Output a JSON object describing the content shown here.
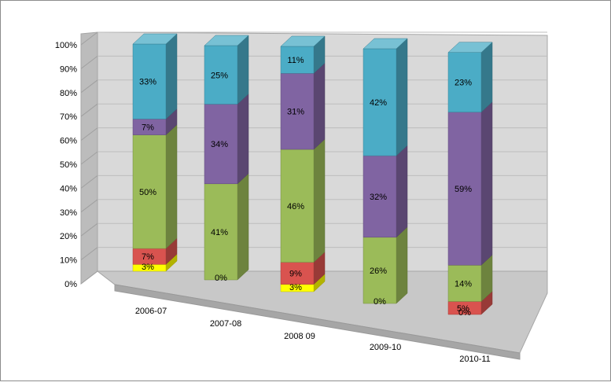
{
  "chart_data": {
    "type": "bar",
    "stacked": "100%",
    "projection": "3d",
    "categories": [
      "2006-07",
      "2007-08",
      "2008 09",
      "2009-10",
      "2010-11"
    ],
    "series": [
      {
        "color": "#ffff00",
        "values": [
          3,
          0,
          3,
          0,
          0
        ],
        "labels": [
          "3%",
          "0%",
          "3%",
          "0%",
          "0%"
        ]
      },
      {
        "color": "#d9534f",
        "values": [
          7,
          0,
          9,
          0,
          5
        ],
        "labels": [
          "7%",
          "",
          "9%",
          "",
          "5%"
        ]
      },
      {
        "color": "#9bbb59",
        "values": [
          50,
          41,
          46,
          26,
          14
        ],
        "labels": [
          "50%",
          "41%",
          "46%",
          "26%",
          "14%"
        ]
      },
      {
        "color": "#8064a2",
        "values": [
          7,
          34,
          31,
          32,
          59
        ],
        "labels": [
          "7%",
          "34%",
          "31%",
          "32%",
          "59%"
        ]
      },
      {
        "color": "#4bacc6",
        "values": [
          33,
          25,
          11,
          42,
          23
        ],
        "labels": [
          "33%",
          "25%",
          "11%",
          "42%",
          "23%"
        ]
      }
    ],
    "y_ticks": [
      "0%",
      "10%",
      "20%",
      "30%",
      "40%",
      "50%",
      "60%",
      "70%",
      "80%",
      "90%",
      "100%"
    ],
    "ylim": [
      0,
      100
    ],
    "grid": true,
    "legend": "none"
  }
}
